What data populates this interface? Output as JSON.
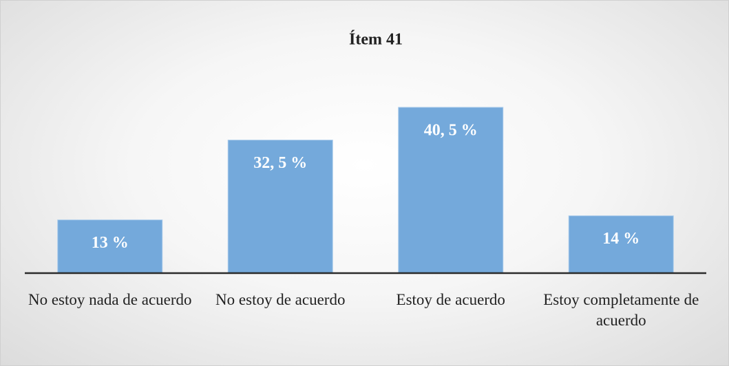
{
  "chart_data": {
    "type": "bar",
    "title": "Ítem 41",
    "categories": [
      "No estoy nada de acuerdo",
      "No estoy de acuerdo",
      "Estoy de acuerdo",
      "Estoy completamente de acuerdo"
    ],
    "values": [
      13,
      32.5,
      40.5,
      14
    ],
    "value_labels": [
      "13 %",
      "32, 5 %",
      "40, 5 %",
      "14 %"
    ],
    "color": "#74a9db"
  }
}
